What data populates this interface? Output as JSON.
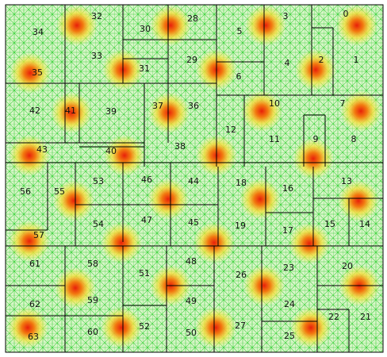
{
  "labels": [
    "0",
    "1",
    "2",
    "3",
    "4",
    "5",
    "6",
    "7",
    "8",
    "9",
    "10",
    "11",
    "12",
    "13",
    "14",
    "15",
    "16",
    "17",
    "18",
    "19",
    "20",
    "21",
    "22",
    "23",
    "24",
    "25",
    "26",
    "27",
    "28",
    "29",
    "30",
    "31",
    "32",
    "33",
    "34",
    "35",
    "36",
    "37",
    "38",
    "39",
    "40",
    "41",
    "42",
    "43",
    "44",
    "45",
    "46",
    "47",
    "48",
    "49",
    "50",
    "51",
    "52",
    "53",
    "54",
    "55",
    "56",
    "57",
    "58",
    "59",
    "60",
    "61",
    "62",
    "63"
  ]
}
